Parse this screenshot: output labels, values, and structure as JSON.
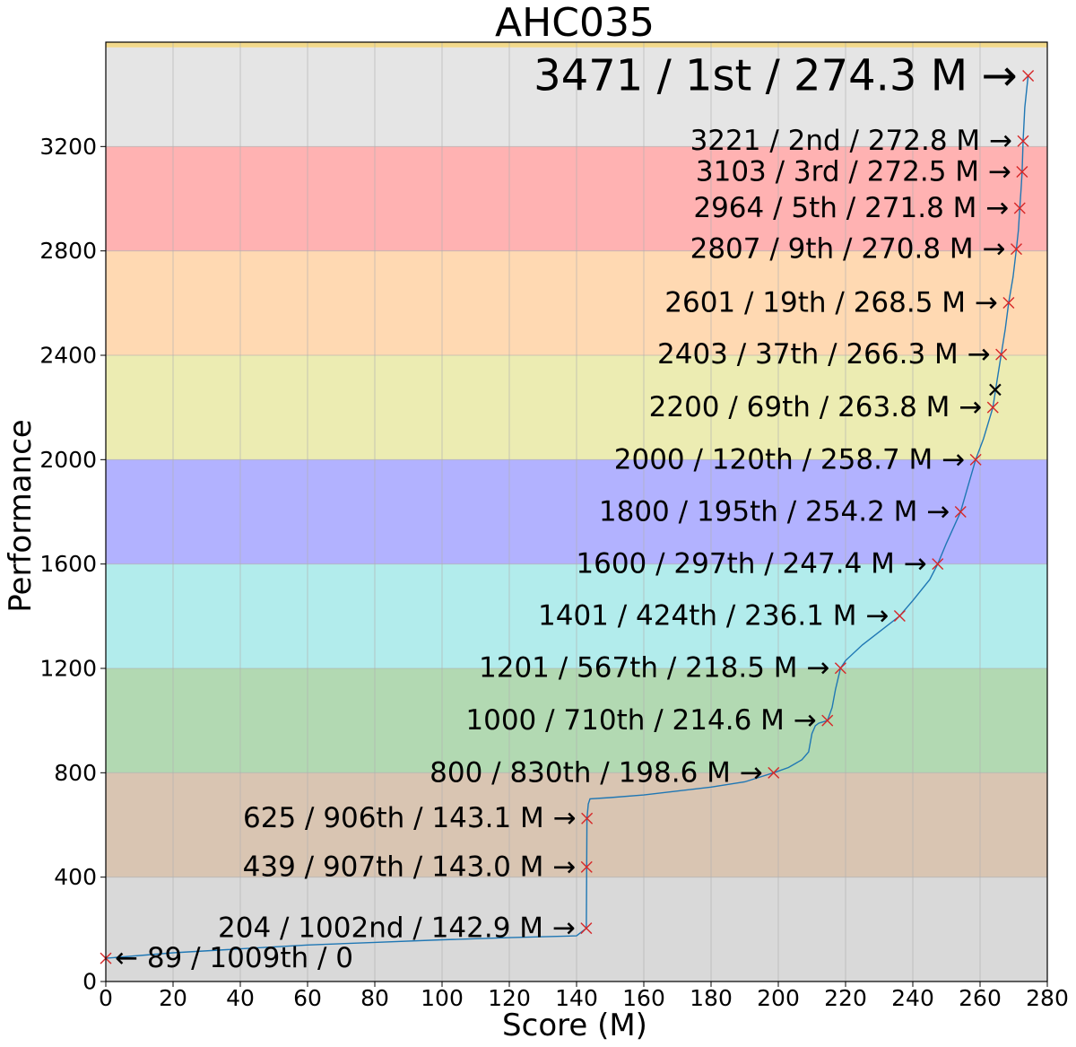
{
  "chart_data": {
    "type": "line",
    "title": "AHC035",
    "xlabel": "Score (M)",
    "ylabel": "Performance",
    "xlim": [
      0,
      280
    ],
    "ylim": [
      0,
      3600
    ],
    "xticks": [
      0,
      20,
      40,
      60,
      80,
      100,
      120,
      140,
      160,
      180,
      200,
      220,
      240,
      260,
      280
    ],
    "yticks": [
      0,
      400,
      800,
      1200,
      1600,
      2000,
      2400,
      2800,
      3200
    ],
    "grid": true,
    "legend": "none",
    "bands": [
      {
        "from": 0,
        "to": 400,
        "color": "#d9d9d9"
      },
      {
        "from": 400,
        "to": 800,
        "color": "#d9c5b2"
      },
      {
        "from": 800,
        "to": 1200,
        "color": "#b2d9b2"
      },
      {
        "from": 1200,
        "to": 1600,
        "color": "#b2ecec"
      },
      {
        "from": 1600,
        "to": 2000,
        "color": "#b2b2ff"
      },
      {
        "from": 2000,
        "to": 2400,
        "color": "#ececb2"
      },
      {
        "from": 2400,
        "to": 2800,
        "color": "#ffd9b2"
      },
      {
        "from": 2800,
        "to": 3200,
        "color": "#ffb2b2"
      },
      {
        "from": 3200,
        "to": 3580,
        "color": "#e5e5e5"
      },
      {
        "from": 3580,
        "to": 3600,
        "color": "#f2d98c"
      }
    ],
    "series": [
      {
        "color": "#1f77b4",
        "x": [
          0,
          20,
          40,
          60,
          80,
          100,
          120,
          140,
          142.9,
          143.0,
          143.1,
          143.5,
          144,
          150,
          160,
          170,
          180,
          190,
          198.6,
          203,
          207,
          209,
          210,
          211,
          212,
          214.6,
          216,
          217,
          218.5,
          220,
          225,
          230,
          236.1,
          240,
          245,
          247.4,
          250,
          254.2,
          256,
          258.7,
          261,
          263.8,
          265,
          266.3,
          267.5,
          268.5,
          269.8,
          270.8,
          271.4,
          271.8,
          272.2,
          272.5,
          272.8,
          273.3,
          274.3
        ],
        "y": [
          89,
          110,
          125,
          140,
          150,
          160,
          168,
          175,
          204,
          439,
          625,
          680,
          700,
          705,
          715,
          730,
          745,
          765,
          800,
          820,
          850,
          880,
          950,
          980,
          990,
          1000,
          1050,
          1120,
          1201,
          1230,
          1290,
          1340,
          1401,
          1460,
          1540,
          1600,
          1680,
          1800,
          1880,
          2000,
          2080,
          2200,
          2300,
          2403,
          2500,
          2601,
          2700,
          2807,
          2880,
          2964,
          3040,
          3103,
          3221,
          3350,
          3471
        ]
      }
    ],
    "points": [
      {
        "x": 0,
        "y": 89,
        "label": "← 89 / 1009th / 0",
        "side": "right"
      },
      {
        "x": 142.9,
        "y": 204,
        "label": "204 / 1002nd / 142.9 M →",
        "side": "left"
      },
      {
        "x": 143.0,
        "y": 439,
        "label": "439 / 907th / 143.0 M →",
        "side": "left"
      },
      {
        "x": 143.1,
        "y": 625,
        "label": "625 / 906th / 143.1 M →",
        "side": "left"
      },
      {
        "x": 198.6,
        "y": 800,
        "label": "800 / 830th / 198.6 M →",
        "side": "left"
      },
      {
        "x": 214.6,
        "y": 1000,
        "label": "1000 / 710th / 214.6 M →",
        "side": "left"
      },
      {
        "x": 218.5,
        "y": 1201,
        "label": "1201 / 567th / 218.5 M →",
        "side": "left"
      },
      {
        "x": 236.1,
        "y": 1401,
        "label": "1401 / 424th / 236.1 M →",
        "side": "left"
      },
      {
        "x": 247.4,
        "y": 1600,
        "label": "1600 / 297th / 247.4 M →",
        "side": "left"
      },
      {
        "x": 254.2,
        "y": 1800,
        "label": "1800 / 195th / 254.2 M →",
        "side": "left"
      },
      {
        "x": 258.7,
        "y": 2000,
        "label": "2000 / 120th / 258.7 M →",
        "side": "left"
      },
      {
        "x": 263.8,
        "y": 2200,
        "label": "2200 / 69th / 263.8 M →",
        "side": "left"
      },
      {
        "x": 266.3,
        "y": 2403,
        "label": "2403 / 37th / 266.3 M →",
        "side": "left"
      },
      {
        "x": 268.5,
        "y": 2601,
        "label": "2601 / 19th / 268.5 M →",
        "side": "left"
      },
      {
        "x": 270.8,
        "y": 2807,
        "label": "2807 / 9th / 270.8 M →",
        "side": "left"
      },
      {
        "x": 271.8,
        "y": 2964,
        "label": "2964 / 5th / 271.8 M →",
        "side": "left"
      },
      {
        "x": 272.5,
        "y": 3103,
        "label": "3103 / 3rd / 272.5 M →",
        "side": "left"
      },
      {
        "x": 272.8,
        "y": 3221,
        "label": "3221 / 2nd / 272.8 M →",
        "side": "left"
      },
      {
        "x": 274.3,
        "y": 3471,
        "label": "3471 / 1st / 274.3 M →",
        "side": "left",
        "emphasis": true
      }
    ],
    "highlight": {
      "x": 264.5,
      "y": 2268,
      "marker": "x",
      "color": "#000000"
    },
    "marker_color": "#d62728"
  }
}
